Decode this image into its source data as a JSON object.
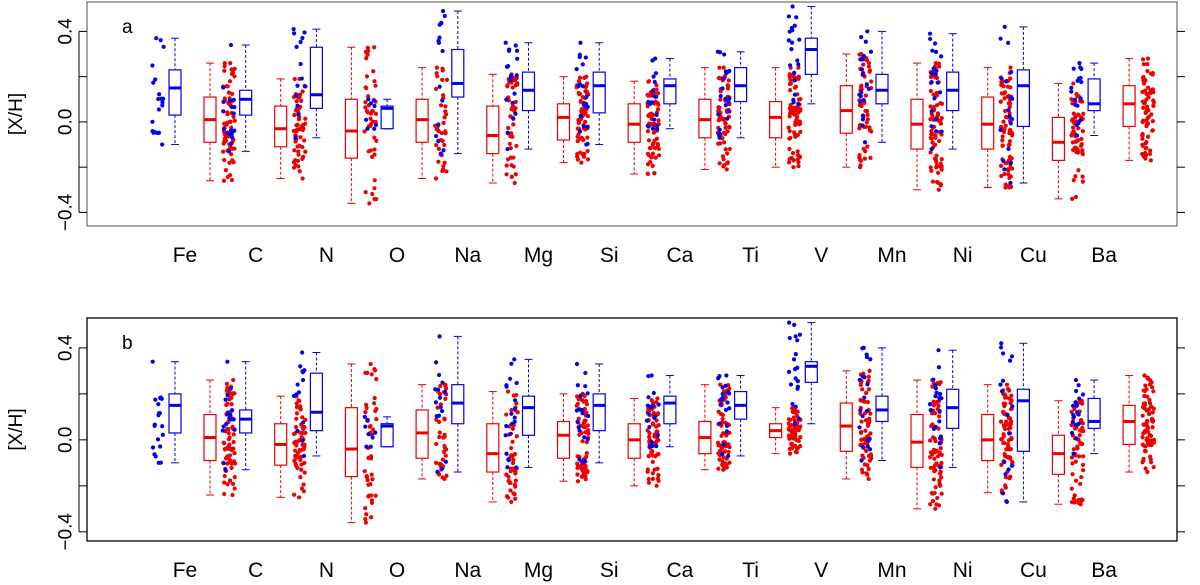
{
  "chart_data": [
    {
      "type": "boxplot",
      "panel_label": "a",
      "ylabel": "[X/H]",
      "ylim": [
        -0.46,
        0.53
      ],
      "yticks": [
        -0.4,
        0.0,
        0.4
      ],
      "ytick_labels": [
        "−0.4",
        "0.0",
        "0.4"
      ],
      "categories": [
        "Fe",
        "C",
        "N",
        "O",
        "Na",
        "Mg",
        "Si",
        "Ca",
        "Ti",
        "V",
        "Mn",
        "Ni",
        "Cu",
        "Ba"
      ],
      "colors": {
        "blue": "#0000ee",
        "red": "#ee0000"
      },
      "series": [
        {
          "color": "blue",
          "boxes": [
            {
              "min": -0.1,
              "q1": 0.03,
              "median": 0.15,
              "q3": 0.23,
              "max": 0.37,
              "n": 20
            },
            {
              "min": -0.13,
              "q1": 0.03,
              "median": 0.1,
              "q3": 0.14,
              "max": 0.34,
              "n": 18
            },
            {
              "min": -0.07,
              "q1": 0.06,
              "median": 0.12,
              "q3": 0.33,
              "max": 0.41,
              "n": 14
            },
            {
              "min": -0.03,
              "q1": -0.03,
              "median": 0.06,
              "q3": 0.07,
              "max": 0.1,
              "n": 8
            },
            {
              "min": -0.14,
              "q1": 0.11,
              "median": 0.17,
              "q3": 0.32,
              "max": 0.49,
              "n": 16
            },
            {
              "min": -0.12,
              "q1": 0.05,
              "median": 0.14,
              "q3": 0.22,
              "max": 0.35,
              "n": 20
            },
            {
              "min": -0.1,
              "q1": 0.04,
              "median": 0.16,
              "q3": 0.22,
              "max": 0.35,
              "n": 20
            },
            {
              "min": -0.03,
              "q1": 0.08,
              "median": 0.16,
              "q3": 0.19,
              "max": 0.28,
              "n": 18
            },
            {
              "min": -0.07,
              "q1": 0.09,
              "median": 0.16,
              "q3": 0.24,
              "max": 0.31,
              "n": 20
            },
            {
              "min": 0.08,
              "q1": 0.21,
              "median": 0.32,
              "q3": 0.37,
              "max": 0.51,
              "n": 20
            },
            {
              "min": -0.09,
              "q1": 0.08,
              "median": 0.14,
              "q3": 0.21,
              "max": 0.4,
              "n": 20
            },
            {
              "min": -0.12,
              "q1": 0.05,
              "median": 0.14,
              "q3": 0.22,
              "max": 0.39,
              "n": 20
            },
            {
              "min": -0.27,
              "q1": -0.02,
              "median": 0.16,
              "q3": 0.23,
              "max": 0.42,
              "n": 18
            },
            {
              "min": -0.06,
              "q1": 0.05,
              "median": 0.08,
              "q3": 0.19,
              "max": 0.26,
              "n": 18
            }
          ]
        },
        {
          "color": "red",
          "boxes": [
            {
              "min": -0.26,
              "q1": -0.09,
              "median": 0.01,
              "q3": 0.11,
              "max": 0.26,
              "n": 70
            },
            {
              "min": -0.25,
              "q1": -0.11,
              "median": -0.03,
              "q3": 0.07,
              "max": 0.19,
              "n": 60
            },
            {
              "min": -0.36,
              "q1": -0.16,
              "median": -0.04,
              "q3": 0.1,
              "max": 0.33,
              "n": 45
            },
            {
              "min": -0.25,
              "q1": -0.09,
              "median": 0.01,
              "q3": 0.1,
              "max": 0.24,
              "n": 40
            },
            {
              "min": -0.27,
              "q1": -0.14,
              "median": -0.06,
              "q3": 0.07,
              "max": 0.21,
              "n": 45
            },
            {
              "min": -0.18,
              "q1": -0.08,
              "median": 0.02,
              "q3": 0.08,
              "max": 0.2,
              "n": 65
            },
            {
              "min": -0.23,
              "q1": -0.09,
              "median": -0.01,
              "q3": 0.08,
              "max": 0.18,
              "n": 65
            },
            {
              "min": -0.21,
              "q1": -0.07,
              "median": 0.01,
              "q3": 0.1,
              "max": 0.24,
              "n": 65
            },
            {
              "min": -0.2,
              "q1": -0.07,
              "median": 0.02,
              "q3": 0.09,
              "max": 0.24,
              "n": 70
            },
            {
              "min": -0.2,
              "q1": -0.05,
              "median": 0.05,
              "q3": 0.16,
              "max": 0.3,
              "n": 60
            },
            {
              "min": -0.3,
              "q1": -0.12,
              "median": -0.01,
              "q3": 0.1,
              "max": 0.26,
              "n": 75
            },
            {
              "min": -0.29,
              "q1": -0.12,
              "median": -0.01,
              "q3": 0.11,
              "max": 0.24,
              "n": 75
            },
            {
              "min": -0.34,
              "q1": -0.17,
              "median": -0.09,
              "q3": 0.02,
              "max": 0.17,
              "n": 60
            },
            {
              "min": -0.17,
              "q1": -0.02,
              "median": 0.08,
              "q3": 0.16,
              "max": 0.28,
              "n": 70
            }
          ]
        }
      ]
    },
    {
      "type": "boxplot",
      "panel_label": "b",
      "ylabel": "[X/H]",
      "ylim": [
        -0.44,
        0.53
      ],
      "yticks": [
        -0.4,
        0.0,
        0.4
      ],
      "ytick_labels": [
        "−0.4",
        "0.0",
        "0.4"
      ],
      "categories": [
        "Fe",
        "C",
        "N",
        "O",
        "Na",
        "Mg",
        "Si",
        "Ca",
        "Ti",
        "V",
        "Mn",
        "Ni",
        "Cu",
        "Ba"
      ],
      "colors": {
        "blue": "#0000ee",
        "red": "#ee0000"
      },
      "series": [
        {
          "color": "blue",
          "boxes": [
            {
              "min": -0.1,
              "q1": 0.03,
              "median": 0.15,
              "q3": 0.2,
              "max": 0.34,
              "n": 20
            },
            {
              "min": -0.13,
              "q1": 0.03,
              "median": 0.09,
              "q3": 0.13,
              "max": 0.34,
              "n": 18
            },
            {
              "min": -0.07,
              "q1": 0.04,
              "median": 0.12,
              "q3": 0.29,
              "max": 0.38,
              "n": 14
            },
            {
              "min": -0.03,
              "q1": -0.03,
              "median": 0.06,
              "q3": 0.07,
              "max": 0.1,
              "n": 8
            },
            {
              "min": -0.14,
              "q1": 0.07,
              "median": 0.16,
              "q3": 0.24,
              "max": 0.45,
              "n": 16
            },
            {
              "min": -0.12,
              "q1": 0.02,
              "median": 0.14,
              "q3": 0.19,
              "max": 0.35,
              "n": 20
            },
            {
              "min": -0.1,
              "q1": 0.04,
              "median": 0.15,
              "q3": 0.2,
              "max": 0.33,
              "n": 20
            },
            {
              "min": -0.03,
              "q1": 0.07,
              "median": 0.16,
              "q3": 0.19,
              "max": 0.28,
              "n": 18
            },
            {
              "min": -0.07,
              "q1": 0.09,
              "median": 0.15,
              "q3": 0.21,
              "max": 0.28,
              "n": 20
            },
            {
              "min": 0.07,
              "q1": 0.25,
              "median": 0.32,
              "q3": 0.34,
              "max": 0.51,
              "n": 20
            },
            {
              "min": -0.09,
              "q1": 0.08,
              "median": 0.13,
              "q3": 0.19,
              "max": 0.4,
              "n": 20
            },
            {
              "min": -0.12,
              "q1": 0.05,
              "median": 0.14,
              "q3": 0.22,
              "max": 0.39,
              "n": 20
            },
            {
              "min": -0.27,
              "q1": -0.05,
              "median": 0.17,
              "q3": 0.22,
              "max": 0.42,
              "n": 18
            },
            {
              "min": -0.06,
              "q1": 0.05,
              "median": 0.08,
              "q3": 0.18,
              "max": 0.26,
              "n": 18
            }
          ]
        },
        {
          "color": "red",
          "boxes": [
            {
              "min": -0.24,
              "q1": -0.09,
              "median": 0.01,
              "q3": 0.11,
              "max": 0.26,
              "n": 70
            },
            {
              "min": -0.25,
              "q1": -0.11,
              "median": -0.02,
              "q3": 0.07,
              "max": 0.19,
              "n": 60
            },
            {
              "min": -0.36,
              "q1": -0.16,
              "median": -0.04,
              "q3": 0.14,
              "max": 0.33,
              "n": 45
            },
            {
              "min": -0.17,
              "q1": -0.08,
              "median": 0.03,
              "q3": 0.13,
              "max": 0.24,
              "n": 40
            },
            {
              "min": -0.27,
              "q1": -0.14,
              "median": -0.06,
              "q3": 0.07,
              "max": 0.21,
              "n": 45
            },
            {
              "min": -0.18,
              "q1": -0.08,
              "median": 0.02,
              "q3": 0.08,
              "max": 0.2,
              "n": 65
            },
            {
              "min": -0.2,
              "q1": -0.08,
              "median": 0.0,
              "q3": 0.07,
              "max": 0.18,
              "n": 65
            },
            {
              "min": -0.13,
              "q1": -0.06,
              "median": 0.01,
              "q3": 0.08,
              "max": 0.24,
              "n": 65
            },
            {
              "min": -0.06,
              "q1": 0.01,
              "median": 0.04,
              "q3": 0.07,
              "max": 0.14,
              "n": 70
            },
            {
              "min": -0.17,
              "q1": -0.05,
              "median": 0.06,
              "q3": 0.16,
              "max": 0.3,
              "n": 60
            },
            {
              "min": -0.3,
              "q1": -0.12,
              "median": -0.01,
              "q3": 0.11,
              "max": 0.26,
              "n": 75
            },
            {
              "min": -0.23,
              "q1": -0.09,
              "median": 0.0,
              "q3": 0.11,
              "max": 0.24,
              "n": 75
            },
            {
              "min": -0.28,
              "q1": -0.15,
              "median": -0.06,
              "q3": 0.02,
              "max": 0.17,
              "n": 60
            },
            {
              "min": -0.14,
              "q1": -0.02,
              "median": 0.08,
              "q3": 0.15,
              "max": 0.28,
              "n": 70
            }
          ]
        }
      ]
    }
  ]
}
